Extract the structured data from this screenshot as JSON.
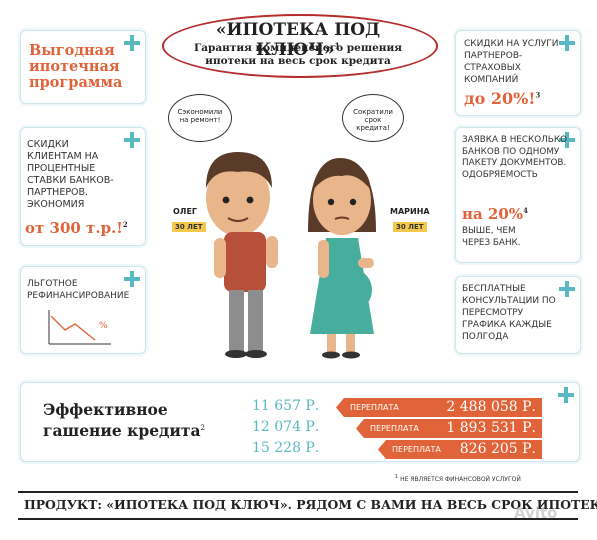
{
  "header": {
    "title": "«ИПОТЕКА ПОД КЛЮЧ»",
    "title_sup": "1",
    "subtitle": "Гарантия комплексного решения ипотеки на весь срок кредита"
  },
  "card1": {
    "text": "Выгодная ипотечная программа"
  },
  "card2": {
    "text": "Скидки клиентам на процентные ставки банков-партнеров. Экономия",
    "amount": "от 300 т.р.!",
    "sup": "2"
  },
  "card3": {
    "text": "Льготное рефинансирование",
    "chart_label": "%"
  },
  "card4": {
    "text": "Скидки на услуги партнеров-страховых компаний",
    "amount": "до 20%!",
    "sup": "3"
  },
  "card5": {
    "text": "Заявка в несколько банков по одному пакету документов. Одобряемость",
    "amount": "на 20%",
    "sup": "4",
    "text2": "выше, чем через банк."
  },
  "card6": {
    "text": "Бесплатные консультации по пересмотру графика каждые полгода"
  },
  "people": {
    "oleg_bubble": "Сэкономили на ремонт!",
    "marina_bubble": "Сократили срок кредита!",
    "oleg_name": "ОЛЕГ",
    "oleg_age": "30 ЛЕТ",
    "marina_name": "МАРИНА",
    "marina_age": "30 ЛЕТ"
  },
  "payments": {
    "title": "Эффективное гашение кредита",
    "sup": "2",
    "rows": [
      {
        "payment": "11 657 Р.",
        "label": "ПЕРЕПЛАТА",
        "overpay": "2 488 058 Р."
      },
      {
        "payment": "12 074 Р.",
        "label": "ПЕРЕПЛАТА",
        "overpay": "1 893 531 Р."
      },
      {
        "payment": "15 228 Р.",
        "label": "ПЕРЕПЛАТА",
        "overpay": "826 205 Р."
      }
    ]
  },
  "footnote": {
    "sup": "1",
    "text": "НЕ ЯВЛЯЕТСЯ ФИНАНСОВОЙ УСЛУГОЙ"
  },
  "footer": {
    "text": "ПРОДУКТ: «ИПОТЕКА ПОД КЛЮЧ». РЯДОМ С ВАМИ НА ВЕСЬ СРОК ИПОТЕКИ"
  },
  "watermark": "Avito",
  "colors": {
    "accent": "#e0633a",
    "teal": "#5ab8c2",
    "border": "#cde6ea"
  }
}
